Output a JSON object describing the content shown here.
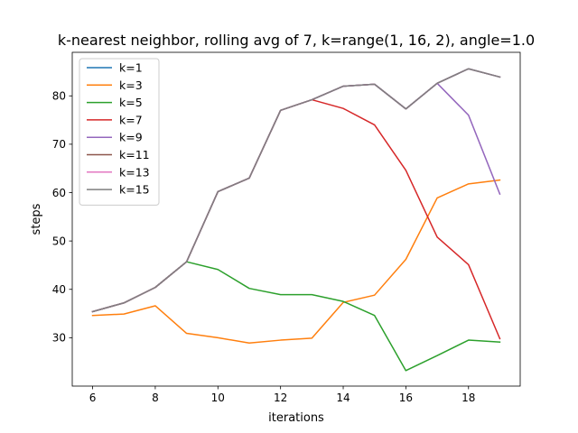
{
  "chart_data": {
    "type": "line",
    "title": "k-nearest neighbor, rolling avg of 7, k=range(1, 16, 2), angle=1.0",
    "xlabel": "iterations",
    "ylabel": "steps",
    "xlim": [
      5.35,
      19.65
    ],
    "ylim": [
      20.0,
      89.0
    ],
    "xticks": [
      6,
      8,
      10,
      12,
      14,
      16,
      18
    ],
    "yticks": [
      30,
      40,
      50,
      60,
      70,
      80
    ],
    "legend_position": "upper-left",
    "grid": false,
    "x": [
      6,
      7,
      8,
      9,
      10,
      11,
      12,
      13,
      14,
      15,
      16,
      17,
      18,
      19
    ],
    "series": [
      {
        "name": "k=1",
        "color": "#1f77b4",
        "values": [
          35.4,
          37.2,
          40.4,
          45.7,
          60.2,
          63.0,
          77.0,
          79.2,
          82.0,
          82.4,
          77.3,
          82.6,
          85.6,
          83.9
        ]
      },
      {
        "name": "k=3",
        "color": "#ff7f0e",
        "values": [
          34.6,
          34.9,
          36.6,
          30.9,
          30.0,
          28.9,
          29.5,
          29.9,
          37.3,
          38.8,
          46.2,
          58.9,
          61.8,
          62.6
        ]
      },
      {
        "name": "k=5",
        "color": "#2ca02c",
        "values": [
          35.4,
          37.2,
          40.4,
          45.7,
          44.1,
          40.2,
          38.9,
          38.9,
          37.5,
          34.6,
          23.2,
          26.3,
          29.5,
          29.1
        ]
      },
      {
        "name": "k=7",
        "color": "#d62728",
        "values": [
          35.4,
          37.2,
          40.4,
          45.7,
          60.2,
          63.0,
          77.0,
          79.2,
          77.4,
          74.0,
          64.6,
          50.8,
          45.1,
          29.8
        ]
      },
      {
        "name": "k=9",
        "color": "#9467bd",
        "values": [
          35.4,
          37.2,
          40.4,
          45.7,
          60.2,
          63.0,
          77.0,
          79.2,
          82.0,
          82.4,
          77.3,
          82.6,
          76.0,
          59.7
        ]
      },
      {
        "name": "k=11",
        "color": "#8c564b",
        "values": [
          35.4,
          37.2,
          40.4,
          45.7,
          60.2,
          63.0,
          77.0,
          79.2,
          82.0,
          82.4,
          77.3,
          82.6,
          85.6,
          83.9
        ]
      },
      {
        "name": "k=13",
        "color": "#e377c2",
        "values": [
          35.4,
          37.2,
          40.4,
          45.7,
          60.2,
          63.0,
          77.0,
          79.2,
          82.0,
          82.4,
          77.3,
          82.6,
          85.6,
          83.9
        ]
      },
      {
        "name": "k=15",
        "color": "#7f7f7f",
        "values": [
          35.4,
          37.2,
          40.4,
          45.7,
          60.2,
          63.0,
          77.0,
          79.2,
          82.0,
          82.4,
          77.3,
          82.6,
          85.6,
          83.9
        ]
      }
    ]
  }
}
